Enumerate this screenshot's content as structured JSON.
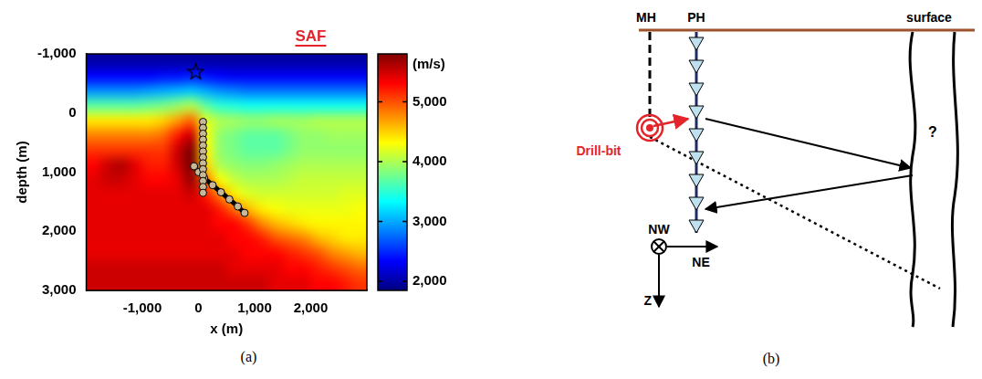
{
  "chart_data": {
    "type": "heatmap",
    "caption": "(a)",
    "x_label": "x (m)",
    "y_label": "depth (m)",
    "xlim": [
      -2000,
      3000
    ],
    "xticks": [
      -1000,
      0,
      1000,
      2000
    ],
    "ylim": [
      3000,
      -1000
    ],
    "yticks": [
      -1000,
      0,
      1000,
      2000,
      3000
    ],
    "grid": false,
    "annotations": [
      {
        "text": "SAF",
        "x": 2000,
        "color": "#e3242b"
      }
    ],
    "colorbar": {
      "label": "(m/s)",
      "range": [
        1850,
        5800
      ],
      "ticks": [
        2000,
        3000,
        4000,
        5000
      ]
    },
    "cell_x": [
      -1875,
      -1625,
      -1375,
      -1125,
      -875,
      -625,
      -375,
      -125,
      125,
      375,
      625,
      875,
      1125,
      1375,
      1625,
      1875,
      2125,
      2375,
      2625,
      2875
    ],
    "cell_y": [
      -875,
      -625,
      -375,
      -125,
      125,
      375,
      625,
      875,
      1125,
      1375,
      1625,
      1875,
      2125,
      2375,
      2625,
      2875
    ],
    "cells": [
      [
        2000,
        2000,
        2000,
        2000,
        2000,
        2000,
        2000,
        2000,
        2000,
        2000,
        2000,
        2000,
        2000,
        2000,
        2000,
        2000,
        2000,
        2000,
        2000,
        2000
      ],
      [
        2350,
        2350,
        2350,
        2350,
        2350,
        2400,
        2400,
        2450,
        2400,
        2350,
        2300,
        2300,
        2300,
        2300,
        2300,
        2300,
        2300,
        2300,
        2300,
        2300
      ],
      [
        2900,
        2900,
        2900,
        2900,
        2950,
        3000,
        3050,
        3100,
        3000,
        2900,
        2850,
        2800,
        2800,
        2800,
        2800,
        2800,
        2800,
        2800,
        2800,
        2800
      ],
      [
        3700,
        3700,
        3700,
        3700,
        3750,
        3800,
        3900,
        4000,
        3700,
        3500,
        3450,
        3400,
        3400,
        3400,
        3400,
        3400,
        3400,
        3400,
        3400,
        3400
      ],
      [
        4400,
        4400,
        4400,
        4400,
        4400,
        4500,
        4700,
        4900,
        4200,
        4000,
        3950,
        3900,
        3900,
        3950,
        3950,
        3950,
        4000,
        4000,
        4000,
        4000
      ],
      [
        4800,
        4800,
        4800,
        4800,
        4800,
        4900,
        5200,
        5500,
        4300,
        3900,
        3800,
        3700,
        3700,
        3700,
        3800,
        3900,
        3900,
        3950,
        3950,
        3950
      ],
      [
        5100,
        5100,
        5100,
        5100,
        5100,
        5100,
        5500,
        5800,
        4400,
        3900,
        3800,
        3700,
        3700,
        3700,
        3800,
        3900,
        3900,
        3900,
        3900,
        3900
      ],
      [
        5300,
        5500,
        5600,
        5400,
        5200,
        5200,
        5500,
        5800,
        4500,
        4000,
        3900,
        3850,
        3850,
        3900,
        3950,
        4000,
        4000,
        4000,
        4000,
        4000
      ],
      [
        5400,
        5500,
        5500,
        5400,
        5300,
        5300,
        5400,
        5700,
        4900,
        4300,
        4100,
        4000,
        4000,
        4000,
        4050,
        4100,
        4100,
        4100,
        4100,
        4100
      ],
      [
        5400,
        5400,
        5400,
        5400,
        5400,
        5400,
        5400,
        5500,
        5200,
        4800,
        4400,
        4200,
        4150,
        4150,
        4150,
        4150,
        4150,
        4150,
        4200,
        4200
      ],
      [
        5400,
        5400,
        5400,
        5400,
        5400,
        5400,
        5400,
        5400,
        5400,
        5200,
        4900,
        4600,
        4400,
        4300,
        4250,
        4250,
        4250,
        4250,
        4250,
        4300
      ],
      [
        5400,
        5400,
        5400,
        5400,
        5400,
        5400,
        5400,
        5400,
        5400,
        5300,
        5300,
        5100,
        4800,
        4600,
        4500,
        4400,
        4350,
        4350,
        4350,
        4350
      ],
      [
        5400,
        5400,
        5400,
        5400,
        5400,
        5400,
        5400,
        5400,
        5400,
        5400,
        5300,
        5300,
        5200,
        5000,
        4900,
        4800,
        4600,
        4500,
        4400,
        4400
      ],
      [
        5400,
        5400,
        5400,
        5400,
        5400,
        5400,
        5400,
        5400,
        5400,
        5400,
        5400,
        5300,
        5300,
        5300,
        5200,
        5100,
        5000,
        4800,
        4700,
        4600
      ],
      [
        5500,
        5500,
        5500,
        5500,
        5500,
        5500,
        5500,
        5500,
        5500,
        5500,
        5400,
        5400,
        5400,
        5400,
        5300,
        5300,
        5200,
        5100,
        5000,
        4900
      ],
      [
        5500,
        5500,
        5500,
        5500,
        5500,
        5500,
        5500,
        5500,
        5500,
        5500,
        5500,
        5500,
        5500,
        5400,
        5400,
        5400,
        5300,
        5300,
        5200,
        5100
      ]
    ],
    "series": [
      {
        "type": "scatter",
        "marker": "star",
        "line_style": "none",
        "color": "#000000",
        "x": [
          -50
        ],
        "y": [
          -700
        ]
      },
      {
        "type": "line",
        "marker": "circle",
        "line_style": "solid",
        "color": "#000000",
        "x": [
          80,
          80,
          80,
          80,
          80,
          80,
          80,
          80,
          80,
          80,
          80,
          80,
          80
        ],
        "y": [
          150,
          250,
          350,
          450,
          550,
          650,
          750,
          850,
          950,
          1050,
          1150,
          1250,
          1350
        ]
      },
      {
        "type": "line",
        "marker": "circle",
        "line_style": "solid",
        "color": "#000000",
        "x": [
          -80,
          0,
          100,
          250,
          400,
          550,
          700,
          820
        ],
        "y": [
          900,
          1000,
          1100,
          1220,
          1340,
          1460,
          1580,
          1690
        ]
      }
    ]
  },
  "diagram": {
    "caption": "(b)",
    "labels": {
      "mh": "MH",
      "ph": "PH",
      "surface": "surface",
      "drill_bit": "Drill-bit",
      "unknown": "?",
      "nw": "NW",
      "ne": "NE",
      "z": "Z"
    }
  }
}
